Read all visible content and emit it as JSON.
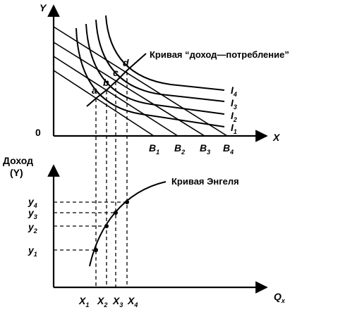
{
  "top_panel": {
    "y_axis": "Y",
    "x_axis": "X",
    "origin": "0",
    "curve_label": "Кривая “доход—потребление”",
    "points": [
      "a",
      "b",
      "c",
      "d"
    ],
    "budget_lines": [
      {
        "base": "B",
        "sub": "1"
      },
      {
        "base": "B",
        "sub": "2"
      },
      {
        "base": "B",
        "sub": "3"
      },
      {
        "base": "B",
        "sub": "4"
      }
    ],
    "indifference_curves": [
      {
        "base": "I",
        "sub": "4"
      },
      {
        "base": "I",
        "sub": "3"
      },
      {
        "base": "I",
        "sub": "2"
      },
      {
        "base": "I",
        "sub": "1"
      }
    ]
  },
  "bottom_panel": {
    "y_axis_line1": "Доход",
    "y_axis_line2": "(Y)",
    "x_axis": {
      "base": "Q",
      "sub": "x"
    },
    "curve_label": "Кривая  Энгеля",
    "y_ticks": [
      {
        "base": "y",
        "sub": "4"
      },
      {
        "base": "y",
        "sub": "3"
      },
      {
        "base": "y",
        "sub": "2"
      },
      {
        "base": "y",
        "sub": "1"
      }
    ],
    "x_ticks": [
      {
        "base": "X",
        "sub": "1"
      },
      {
        "base": "X",
        "sub": "2"
      },
      {
        "base": "X",
        "sub": "3"
      },
      {
        "base": "X",
        "sub": "4"
      }
    ]
  }
}
